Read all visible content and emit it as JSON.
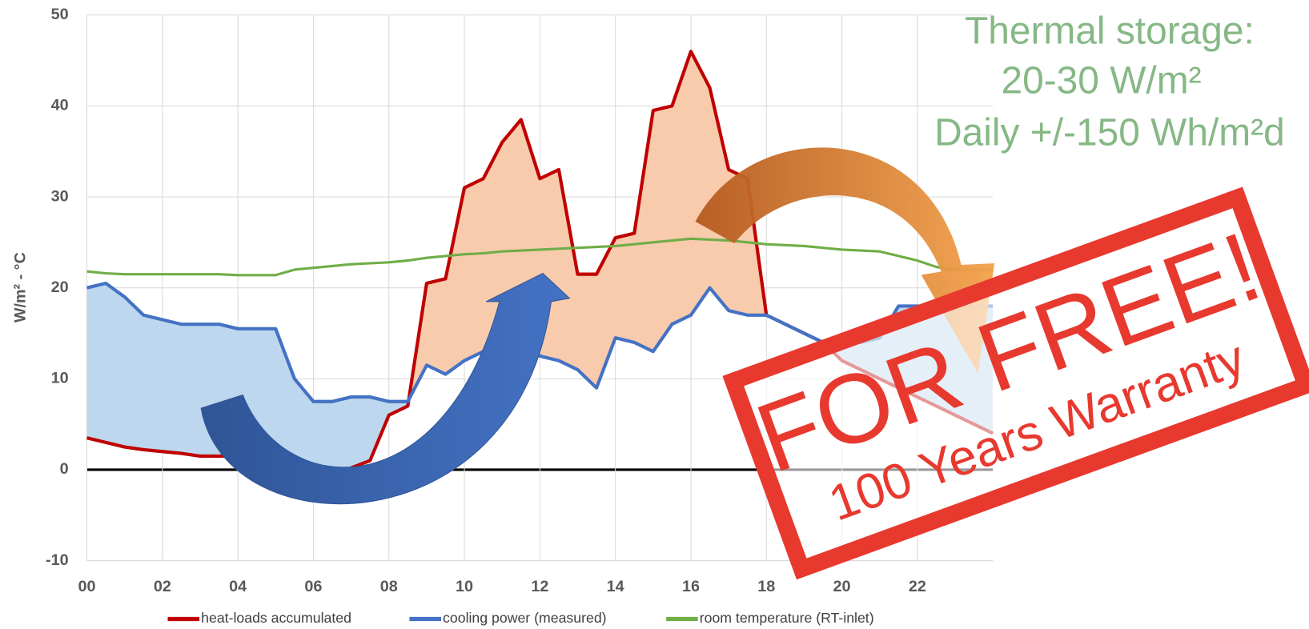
{
  "chart_data": {
    "type": "line",
    "y_label": "W/m² - °C",
    "annotations": [
      "Thermal storage:",
      "20-30 W/m²",
      "Daily +/-150 Wh/m²d"
    ],
    "stamp": {
      "title": "FOR FREE!",
      "subtitle": "100 Years Warranty"
    },
    "x": [
      0,
      0.5,
      1,
      1.5,
      2,
      2.5,
      3,
      3.5,
      4,
      4.5,
      5,
      5.5,
      6,
      6.5,
      7,
      7.5,
      8,
      8.5,
      9,
      9.5,
      10,
      10.5,
      11,
      11.5,
      12,
      12.5,
      13,
      13.5,
      14,
      14.5,
      15,
      15.5,
      16,
      16.5,
      17,
      17.5,
      18,
      18.5,
      19,
      19.5,
      20,
      20.5,
      21,
      21.5,
      22,
      22.5,
      23,
      23.5,
      24
    ],
    "series": [
      {
        "name": "heat-loads accumulated",
        "color": "#c00000",
        "values": [
          3.5,
          3,
          2.5,
          2.2,
          2,
          1.8,
          1.5,
          1.5,
          1.5,
          1.2,
          1,
          0.5,
          0,
          -0.5,
          0.2,
          1,
          6,
          7,
          20.5,
          21,
          31,
          32,
          36,
          38.5,
          32,
          33,
          21.5,
          21.5,
          25.5,
          26,
          39.5,
          40,
          46,
          42,
          33,
          32,
          17,
          16,
          15,
          14,
          12,
          11,
          10,
          9,
          8,
          7,
          6,
          5,
          4
        ]
      },
      {
        "name": "cooling power (measured)",
        "color": "#4472c4",
        "values": [
          20,
          20.5,
          19,
          17,
          16.5,
          16,
          16,
          16,
          15.5,
          15.5,
          15.5,
          10,
          7.5,
          7.5,
          8,
          8,
          7.5,
          7.5,
          11.5,
          10.5,
          12,
          13,
          14,
          14.5,
          12.5,
          12,
          11,
          9,
          14.5,
          14,
          13,
          16,
          17,
          20,
          17.5,
          17,
          17,
          16,
          15,
          14,
          14,
          14,
          14.5,
          18,
          18,
          18,
          18,
          18,
          18
        ]
      },
      {
        "name": "room temperature (RT-inlet)",
        "color": "#70ad47",
        "values": [
          21.8,
          21.6,
          21.5,
          21.5,
          21.5,
          21.5,
          21.5,
          21.5,
          21.4,
          21.4,
          21.4,
          22,
          22.2,
          22.4,
          22.6,
          22.7,
          22.8,
          23,
          23.3,
          23.5,
          23.7,
          23.8,
          24,
          24.1,
          24.2,
          24.3,
          24.4,
          24.5,
          24.6,
          24.8,
          25,
          25.2,
          25.4,
          25.3,
          25.2,
          25,
          24.8,
          24.7,
          24.6,
          24.4,
          24.2,
          24.1,
          24,
          23.5,
          23,
          22.3,
          22,
          22,
          22
        ]
      }
    ],
    "xlim": [
      0,
      24
    ],
    "xticks": [
      {
        "value": 0,
        "label": "00"
      },
      {
        "value": 2,
        "label": "02"
      },
      {
        "value": 4,
        "label": "04"
      },
      {
        "value": 6,
        "label": "06"
      },
      {
        "value": 8,
        "label": "08"
      },
      {
        "value": 10,
        "label": "10"
      },
      {
        "value": 12,
        "label": "12"
      },
      {
        "value": 14,
        "label": "14"
      },
      {
        "value": 16,
        "label": "16"
      },
      {
        "value": 18,
        "label": "18"
      },
      {
        "value": 20,
        "label": "20"
      },
      {
        "value": 22,
        "label": "22"
      }
    ],
    "ylim": [
      -10,
      50
    ],
    "yticks": [
      -10,
      0,
      10,
      20,
      30,
      40,
      50
    ],
    "grid": true
  }
}
